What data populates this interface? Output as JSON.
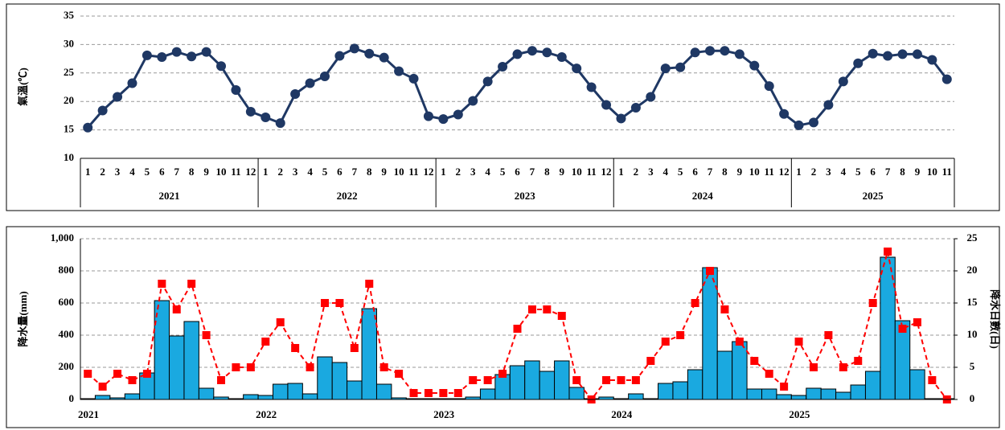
{
  "chart_data": [
    {
      "type": "line",
      "y_label": "氣溫(℃)",
      "color": "#1f3864",
      "groups": [
        {
          "name": "2021",
          "categories": [
            "1",
            "2",
            "3",
            "4",
            "5",
            "6",
            "7",
            "8",
            "9",
            "10",
            "11",
            "12"
          ]
        },
        {
          "name": "2022",
          "categories": [
            "1",
            "2",
            "3",
            "4",
            "5",
            "6",
            "7",
            "8",
            "9",
            "10",
            "11",
            "12"
          ]
        },
        {
          "name": "2023",
          "categories": [
            "1",
            "2",
            "3",
            "4",
            "5",
            "6",
            "7",
            "8",
            "9",
            "10",
            "11",
            "12"
          ]
        },
        {
          "name": "2024",
          "categories": [
            "1",
            "2",
            "3",
            "4",
            "5",
            "6",
            "7",
            "8",
            "9",
            "10",
            "11",
            "12"
          ]
        },
        {
          "name": "2025",
          "categories": [
            "1",
            "2",
            "3",
            "4",
            "5",
            "6",
            "7",
            "8",
            "9",
            "10",
            "11"
          ]
        }
      ],
      "values": [
        15.4,
        18.4,
        20.8,
        23.2,
        28.1,
        27.8,
        28.7,
        27.9,
        28.7,
        26.2,
        22.0,
        18.2,
        17.2,
        16.2,
        21.3,
        23.2,
        24.4,
        28.0,
        29.3,
        28.4,
        27.7,
        25.3,
        24.0,
        17.4,
        16.9,
        17.7,
        20.1,
        23.5,
        26.1,
        28.3,
        28.9,
        28.6,
        27.8,
        25.8,
        22.5,
        19.4,
        17.0,
        18.9,
        20.8,
        25.8,
        26.0,
        28.6,
        28.9,
        28.9,
        28.3,
        26.3,
        22.7,
        17.8,
        15.8,
        16.3,
        19.4,
        23.5,
        26.7,
        28.4,
        28.0,
        28.3,
        28.3,
        27.3,
        23.9
      ],
      "ylim": [
        10,
        35
      ],
      "yticks": [
        10,
        15,
        20,
        25,
        30,
        35
      ],
      "grid": true
    },
    {
      "type": "bar_line",
      "y_label": "降水量(mm)",
      "y2_label": "降水日數(日)",
      "categories": [
        "2021",
        null,
        null,
        null,
        null,
        null,
        null,
        null,
        null,
        null,
        null,
        null,
        "2022",
        null,
        null,
        null,
        null,
        null,
        null,
        null,
        null,
        null,
        null,
        null,
        "2023",
        null,
        null,
        null,
        null,
        null,
        null,
        null,
        null,
        null,
        null,
        null,
        "2024",
        null,
        null,
        null,
        null,
        null,
        null,
        null,
        null,
        null,
        null,
        null,
        "2025",
        null,
        null,
        null,
        null,
        null,
        null,
        null,
        null,
        null,
        null
      ],
      "series": [
        {
          "type": "bar",
          "color": "#1aa9e0",
          "values": [
            5,
            25,
            10,
            35,
            165,
            615,
            395,
            485,
            70,
            15,
            5,
            30,
            25,
            95,
            100,
            35,
            265,
            230,
            115,
            565,
            95,
            10,
            5,
            5,
            5,
            5,
            15,
            65,
            155,
            210,
            240,
            175,
            240,
            75,
            5,
            15,
            5,
            35,
            5,
            100,
            110,
            185,
            820,
            300,
            360,
            65,
            65,
            30,
            25,
            70,
            65,
            45,
            90,
            175,
            885,
            490,
            185,
            5,
            5
          ]
        },
        {
          "type": "line",
          "axis": "y2",
          "color": "#ff0000",
          "values": [
            4,
            2,
            4,
            3,
            4,
            18,
            14,
            18,
            10,
            3,
            5,
            5,
            9,
            12,
            8,
            5,
            15,
            15,
            8,
            18,
            5,
            4,
            1,
            1,
            1,
            1,
            3,
            3,
            4,
            11,
            14,
            14,
            13,
            3,
            0,
            3,
            3,
            3,
            6,
            9,
            10,
            15,
            20,
            14,
            9,
            6,
            4,
            2,
            9,
            5,
            10,
            5,
            6,
            15,
            23,
            11,
            12,
            3,
            0
          ]
        }
      ],
      "ylim": [
        0,
        1000
      ],
      "yticks": [
        0,
        200,
        400,
        600,
        800,
        {
          "value": 1000,
          "label": "1,000"
        }
      ],
      "y2lim": [
        0,
        25
      ],
      "y2ticks": [
        0,
        5,
        10,
        15,
        20,
        25
      ],
      "grid": true
    }
  ]
}
